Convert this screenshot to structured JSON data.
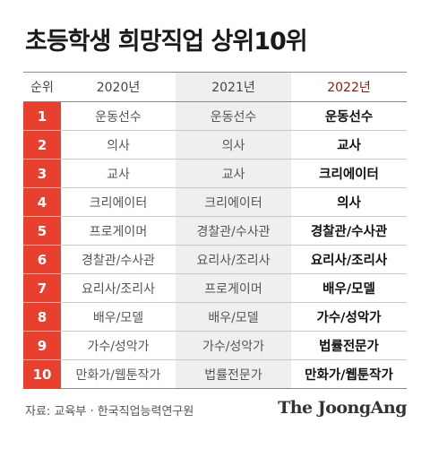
{
  "title": "초등학생 희망직업 상위10위",
  "chart_data": {
    "type": "table",
    "title": "초등학생 희망직업 상위10위",
    "columns": [
      "순위",
      "2020년",
      "2021년",
      "2022년"
    ],
    "rows": [
      {
        "rank": "1",
        "y2020": "운동선수",
        "y2021": "운동선수",
        "y2022": "운동선수"
      },
      {
        "rank": "2",
        "y2020": "의사",
        "y2021": "의사",
        "y2022": "교사"
      },
      {
        "rank": "3",
        "y2020": "교사",
        "y2021": "교사",
        "y2022": "크리에이터"
      },
      {
        "rank": "4",
        "y2020": "크리에이터",
        "y2021": "크리에이터",
        "y2022": "의사"
      },
      {
        "rank": "5",
        "y2020": "프로게이머",
        "y2021": "경찰관/수사관",
        "y2022": "경찰관/수사관"
      },
      {
        "rank": "6",
        "y2020": "경찰관/수사관",
        "y2021": "요리사/조리사",
        "y2022": "요리사/조리사"
      },
      {
        "rank": "7",
        "y2020": "요리사/조리사",
        "y2021": "프로게이머",
        "y2022": "배우/모델"
      },
      {
        "rank": "8",
        "y2020": "배우/모델",
        "y2021": "배우/모델",
        "y2022": "가수/성악가"
      },
      {
        "rank": "9",
        "y2020": "가수/성악가",
        "y2021": "가수/성악가",
        "y2022": "법률전문가"
      },
      {
        "rank": "10",
        "y2020": "만화가/웹툰작가",
        "y2021": "법률전문가",
        "y2022": "만화가/웹툰작가"
      }
    ],
    "colors": {
      "rank_bg": "#e8402e",
      "highlight_header": "#8b1a1a",
      "shade_2021": "#efefef"
    }
  },
  "footer": {
    "source": "자료: 교육부 · 한국직업능력연구원",
    "logo": "The JoongAng"
  }
}
